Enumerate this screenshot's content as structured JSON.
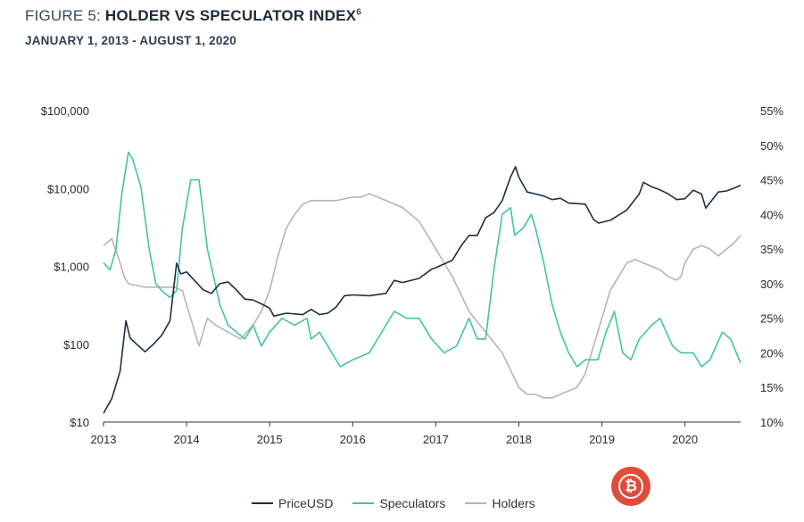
{
  "header": {
    "figure_prefix": "FIGURE 5: ",
    "title": "HOLDER VS SPECULATOR INDEX",
    "footnote_mark": "6",
    "subtitle": "JANUARY 1, 2013 - AUGUST 1, 2020"
  },
  "logo": {
    "icon": "bitcoin-icon",
    "glyph": "₿",
    "color": "#e04b3a"
  },
  "colors": {
    "price": "#1c2f45",
    "speculators": "#43c4a0",
    "holders": "#b5b5b5"
  },
  "chart_data": {
    "type": "line",
    "title": "HOLDER VS SPECULATOR INDEX",
    "subtitle": "JANUARY 1, 2013 - AUGUST 1, 2020",
    "xlim": [
      2013,
      2020.67
    ],
    "x_ticks": [
      "2013",
      "2014",
      "2015",
      "2016",
      "2017",
      "2018",
      "2019",
      "2020"
    ],
    "y_left": {
      "scale": "log",
      "range": [
        10,
        100000
      ],
      "ticks": [
        "$10",
        "$100",
        "$1,000",
        "$10,000",
        "$100,000"
      ]
    },
    "y_right": {
      "scale": "linear",
      "range": [
        10,
        55
      ],
      "unit": "%",
      "ticks": [
        "10%",
        "15%",
        "20%",
        "25%",
        "30%",
        "35%",
        "40%",
        "45%",
        "50%",
        "55%"
      ]
    },
    "grid": false,
    "legend": "bottom-center",
    "series": [
      {
        "name": "PriceUSD",
        "axis": "left",
        "color": "#1c2f45",
        "x": [
          2013.0,
          2013.1,
          2013.2,
          2013.27,
          2013.32,
          2013.4,
          2013.5,
          2013.6,
          2013.7,
          2013.8,
          2013.88,
          2013.93,
          2014.0,
          2014.1,
          2014.2,
          2014.3,
          2014.4,
          2014.5,
          2014.6,
          2014.7,
          2014.8,
          2014.9,
          2015.0,
          2015.05,
          2015.2,
          2015.4,
          2015.5,
          2015.6,
          2015.7,
          2015.8,
          2015.9,
          2016.0,
          2016.2,
          2016.4,
          2016.5,
          2016.6,
          2016.8,
          2016.95,
          2017.0,
          2017.2,
          2017.3,
          2017.4,
          2017.5,
          2017.6,
          2017.7,
          2017.8,
          2017.9,
          2017.96,
          2018.0,
          2018.1,
          2018.2,
          2018.3,
          2018.4,
          2018.5,
          2018.6,
          2018.7,
          2018.8,
          2018.9,
          2018.96,
          2019.1,
          2019.3,
          2019.45,
          2019.5,
          2019.6,
          2019.7,
          2019.8,
          2019.9,
          2020.0,
          2020.1,
          2020.2,
          2020.25,
          2020.4,
          2020.5,
          2020.6,
          2020.67
        ],
        "values": [
          13,
          20,
          45,
          200,
          120,
          100,
          80,
          100,
          130,
          200,
          1100,
          800,
          850,
          650,
          500,
          450,
          600,
          630,
          500,
          380,
          370,
          330,
          290,
          230,
          250,
          240,
          280,
          240,
          250,
          300,
          420,
          430,
          420,
          450,
          660,
          620,
          700,
          920,
          960,
          1200,
          1800,
          2500,
          2500,
          4200,
          4900,
          7000,
          14000,
          19000,
          14000,
          9000,
          8500,
          8000,
          7200,
          7500,
          6500,
          6400,
          6300,
          4000,
          3600,
          3900,
          5300,
          8500,
          12000,
          10500,
          9600,
          8500,
          7200,
          7400,
          9500,
          8500,
          5600,
          9000,
          9300,
          10200,
          11000
        ]
      },
      {
        "name": "Speculators",
        "axis": "right",
        "color": "#43c4a0",
        "x": [
          2013.0,
          2013.08,
          2013.15,
          2013.22,
          2013.3,
          2013.35,
          2013.45,
          2013.55,
          2013.63,
          2013.7,
          2013.8,
          2013.88,
          2013.95,
          2014.05,
          2014.15,
          2014.25,
          2014.4,
          2014.5,
          2014.6,
          2014.7,
          2014.8,
          2014.9,
          2015.0,
          2015.15,
          2015.3,
          2015.45,
          2015.5,
          2015.6,
          2015.7,
          2015.85,
          2016.0,
          2016.2,
          2016.4,
          2016.5,
          2016.65,
          2016.8,
          2016.95,
          2017.1,
          2017.25,
          2017.4,
          2017.5,
          2017.6,
          2017.7,
          2017.8,
          2017.9,
          2017.95,
          2018.05,
          2018.15,
          2018.2,
          2018.3,
          2018.4,
          2018.5,
          2018.6,
          2018.7,
          2018.8,
          2018.95,
          2019.05,
          2019.15,
          2019.25,
          2019.35,
          2019.45,
          2019.6,
          2019.7,
          2019.85,
          2019.95,
          2020.1,
          2020.2,
          2020.3,
          2020.45,
          2020.55,
          2020.67
        ],
        "values": [
          33,
          32,
          35,
          43,
          49,
          48,
          44,
          35,
          30,
          29,
          28,
          29,
          38,
          45,
          45,
          35,
          27,
          24,
          23,
          22,
          24,
          21,
          23,
          25,
          24,
          25,
          22,
          23,
          21,
          18,
          19,
          20,
          24,
          26,
          25,
          25,
          22,
          20,
          21,
          25,
          22,
          22,
          32,
          40,
          41,
          37,
          38,
          40,
          38,
          33,
          27,
          23,
          20,
          18,
          19,
          19,
          23,
          26,
          20,
          19,
          22,
          24,
          25,
          21,
          20,
          20,
          18,
          19,
          23,
          22,
          18.5
        ]
      },
      {
        "name": "Holders",
        "axis": "right",
        "color": "#b5b5b5",
        "x": [
          2013.0,
          2013.1,
          2013.2,
          2013.25,
          2013.3,
          2013.5,
          2013.7,
          2013.85,
          2013.95,
          2014.05,
          2014.15,
          2014.25,
          2014.35,
          2014.5,
          2014.65,
          2014.8,
          2014.9,
          2015.0,
          2015.1,
          2015.2,
          2015.3,
          2015.4,
          2015.5,
          2015.6,
          2015.8,
          2016.0,
          2016.1,
          2016.2,
          2016.3,
          2016.4,
          2016.5,
          2016.6,
          2016.8,
          2017.0,
          2017.2,
          2017.4,
          2017.6,
          2017.8,
          2018.0,
          2018.1,
          2018.2,
          2018.3,
          2018.4,
          2018.5,
          2018.6,
          2018.7,
          2018.8,
          2018.9,
          2019.0,
          2019.1,
          2019.2,
          2019.3,
          2019.4,
          2019.5,
          2019.6,
          2019.7,
          2019.8,
          2019.9,
          2019.95,
          2020.0,
          2020.1,
          2020.2,
          2020.3,
          2020.4,
          2020.5,
          2020.6,
          2020.67
        ],
        "values": [
          35.5,
          36.5,
          33,
          31,
          30,
          29.5,
          29.5,
          29.5,
          29,
          25,
          21,
          25,
          24,
          23,
          22,
          24,
          26,
          29,
          34,
          38,
          40,
          41.5,
          42,
          42,
          42,
          42.5,
          42.5,
          43,
          42.5,
          42,
          41.5,
          41,
          39,
          35,
          31,
          26,
          23,
          20,
          15,
          14,
          14,
          13.5,
          13.5,
          14,
          14.5,
          15,
          17,
          21,
          25,
          29,
          31,
          33,
          33.5,
          33,
          32.5,
          32,
          31,
          30.5,
          31,
          33,
          35,
          35.5,
          35,
          34,
          35,
          36,
          37
        ]
      }
    ]
  },
  "legend_items": [
    {
      "label": "PriceUSD",
      "color": "#1c2f45"
    },
    {
      "label": "Speculators",
      "color": "#43c4a0"
    },
    {
      "label": "Holders",
      "color": "#b5b5b5"
    }
  ]
}
